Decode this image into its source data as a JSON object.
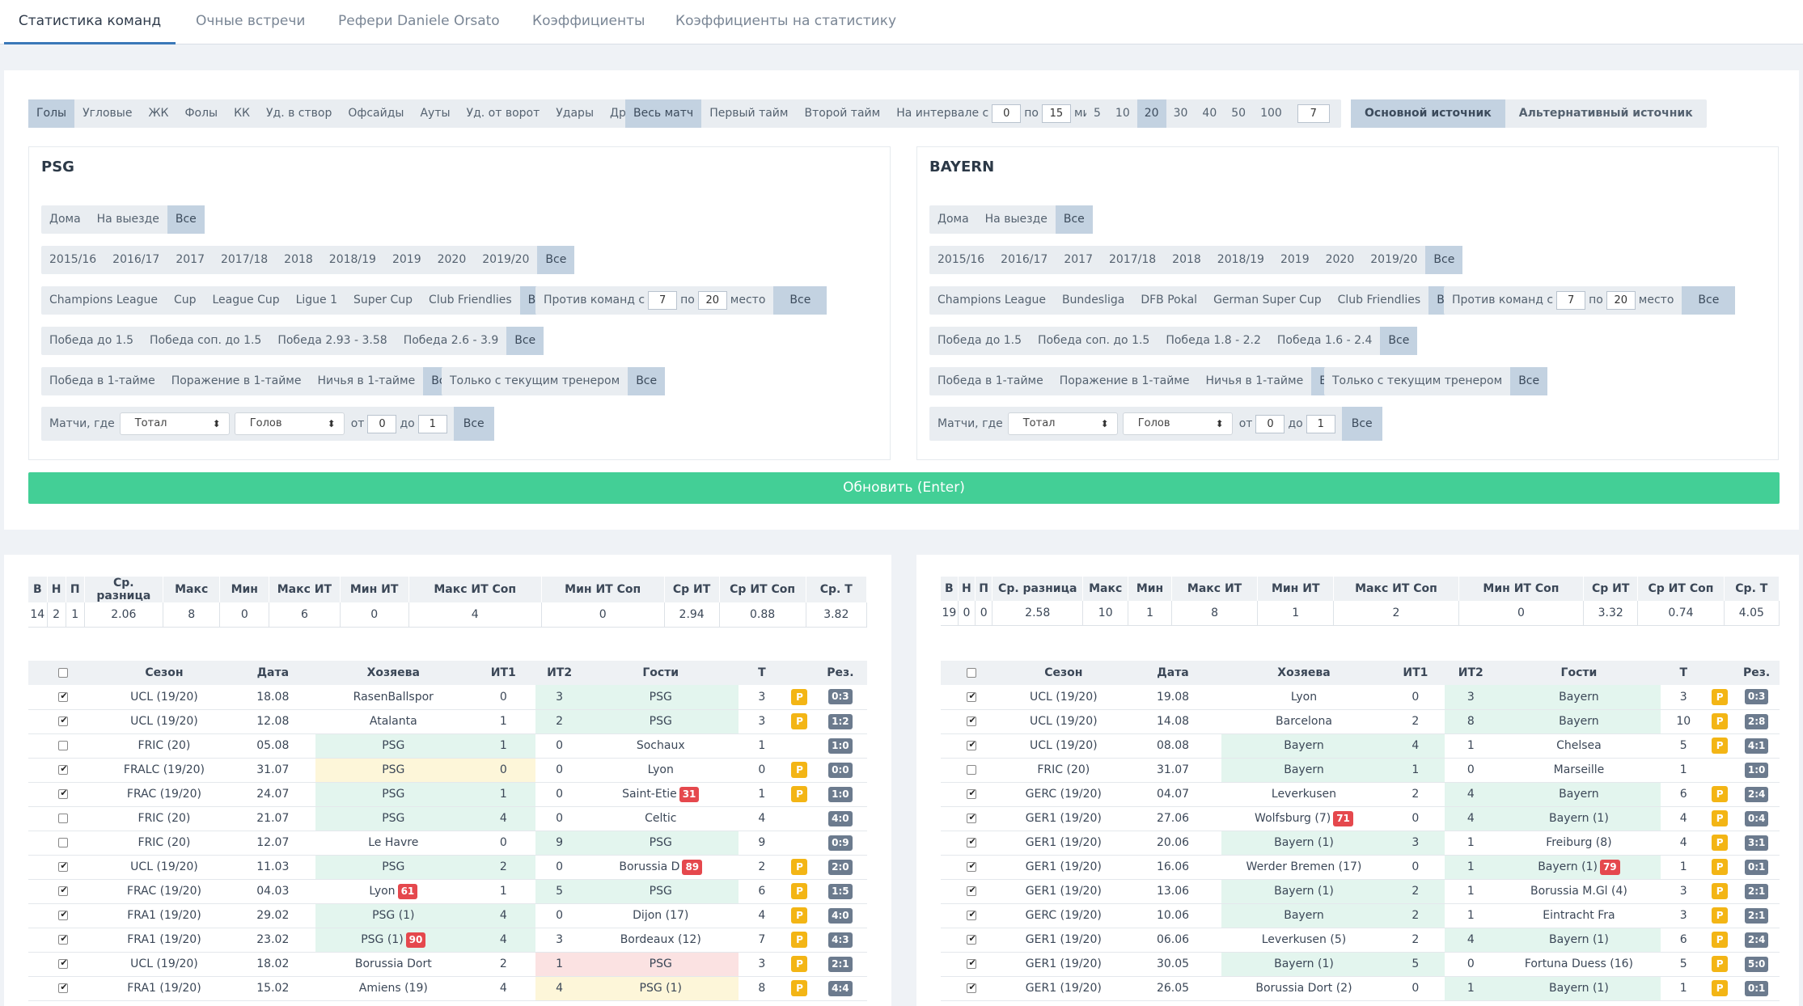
{
  "tabs": [
    "Статистика команд",
    "Очные встречи",
    "Рефери Daniele Orsato",
    "Коэффициенты",
    "Коэффициенты на статистику"
  ],
  "stat_types": [
    "Голы",
    "Угловые",
    "ЖК",
    "Фолы",
    "КК",
    "Уд. в створ",
    "Офсайды",
    "Ауты",
    "Уд. от ворот",
    "Удары",
    "Другое ▾"
  ],
  "periods": {
    "items": [
      "Весь матч",
      "Первый тайм",
      "Второй тайм"
    ],
    "interval_label": "На интервале с",
    "from": "0",
    "to_label": "по",
    "to": "15",
    "unit": "мин."
  },
  "counts": {
    "items": [
      "5",
      "10",
      "20",
      "30",
      "40",
      "50",
      "100"
    ],
    "custom": "7"
  },
  "sources": [
    "Основной источник",
    "Альтернативный источник"
  ],
  "teams": [
    {
      "name": "PSG",
      "venue": [
        "Дома",
        "На выезде",
        "Все"
      ],
      "seasons": [
        "2015/16",
        "2016/17",
        "2017",
        "2017/18",
        "2018",
        "2018/19",
        "2019",
        "2020",
        "2019/20",
        "Все"
      ],
      "comps": [
        "Champions League",
        "Cup",
        "League Cup",
        "Ligue 1",
        "Super Cup",
        "Club Friendlies",
        "Все"
      ],
      "against": {
        "label": "Против команд с",
        "from": "7",
        "to_label": "по",
        "to": "20",
        "unit": "место",
        "all": "Все"
      },
      "odds": [
        "Победа до 1.5",
        "Победа соп. до 1.5",
        "Победа 2.93 - 3.58",
        "Победа 2.6 - 3.9",
        "Все"
      ],
      "half": [
        "Победа в 1-тайме",
        "Поражение в 1-тайме",
        "Ничья в 1-тайме",
        "Все"
      ],
      "coach": [
        "Только с текущим тренером",
        "Все"
      ],
      "matches": {
        "label": "Матчи, где",
        "sel1": "Тотал",
        "sel2": "Голов",
        "from_label": "от",
        "from": "0",
        "to_label": "до",
        "to": "1",
        "all": "Все"
      }
    },
    {
      "name": "BAYERN",
      "venue": [
        "Дома",
        "На выезде",
        "Все"
      ],
      "seasons": [
        "2015/16",
        "2016/17",
        "2017",
        "2017/18",
        "2018",
        "2018/19",
        "2019",
        "2020",
        "2019/20",
        "Все"
      ],
      "comps": [
        "Champions League",
        "Bundesliga",
        "DFB Pokal",
        "German Super Cup",
        "Club Friendlies",
        "Все"
      ],
      "against": {
        "label": "Против команд с",
        "from": "7",
        "to_label": "по",
        "to": "20",
        "unit": "место",
        "all": "Все"
      },
      "odds": [
        "Победа до 1.5",
        "Победа соп. до 1.5",
        "Победа 1.8 - 2.2",
        "Победа 1.6 - 2.4",
        "Все"
      ],
      "half": [
        "Победа в 1-тайме",
        "Поражение в 1-тайме",
        "Ничья в 1-тайме",
        "Все"
      ],
      "coach": [
        "Только с текущим тренером",
        "Все"
      ],
      "matches": {
        "label": "Матчи, где",
        "sel1": "Тотал",
        "sel2": "Голов",
        "from_label": "от",
        "from": "0",
        "to_label": "до",
        "to": "1",
        "all": "Все"
      }
    }
  ],
  "update_button": "Обновить (Enter)",
  "stat_headers": [
    "В",
    "Н",
    "П",
    "Ср. разница",
    "Макс",
    "Мин",
    "Макс ИТ",
    "Мин ИТ",
    "Макс ИТ Соп",
    "Мин ИТ Соп",
    "Ср ИТ",
    "Ср ИТ Соп",
    "Ср. Т"
  ],
  "stats": [
    [
      "14",
      "2",
      "1",
      "2.06",
      "8",
      "0",
      "6",
      "0",
      "4",
      "0",
      "2.94",
      "0.88",
      "3.82"
    ],
    [
      "19",
      "0",
      "0",
      "2.58",
      "10",
      "1",
      "8",
      "1",
      "2",
      "0",
      "3.32",
      "0.74",
      "4.05"
    ]
  ],
  "match_headers": [
    "Сезон",
    "Дата",
    "Хозяева",
    "ИТ1",
    "ИТ2",
    "Гости",
    "Т",
    "",
    "Рез."
  ],
  "matches": [
    [
      {
        "c": 1,
        "s": "UCL (19/20)",
        "d": "18.08",
        "h": "RasenBallspor",
        "i1": "0",
        "i2": "3",
        "a": "PSG",
        "t": "3",
        "p": "P",
        "r": "0:3",
        "hc": "",
        "i1c": "",
        "i2c": "g",
        "ac": "g"
      },
      {
        "c": 1,
        "s": "UCL (19/20)",
        "d": "12.08",
        "h": "Atalanta",
        "i1": "1",
        "i2": "2",
        "a": "PSG",
        "t": "3",
        "p": "P",
        "r": "1:2",
        "hc": "",
        "i1c": "",
        "i2c": "g",
        "ac": "g"
      },
      {
        "c": 0,
        "s": "FRIC (20)",
        "d": "05.08",
        "h": "PSG",
        "i1": "1",
        "i2": "0",
        "a": "Sochaux",
        "t": "1",
        "p": "",
        "r": "1:0",
        "hc": "g",
        "i1c": "g",
        "i2c": "",
        "ac": ""
      },
      {
        "c": 1,
        "s": "FRALC (19/20)",
        "d": "31.07",
        "h": "PSG",
        "i1": "0",
        "i2": "0",
        "a": "Lyon",
        "t": "0",
        "p": "P",
        "r": "0:0",
        "hc": "y",
        "i1c": "y",
        "i2c": "",
        "ac": ""
      },
      {
        "c": 1,
        "s": "FRAC (19/20)",
        "d": "24.07",
        "h": "PSG",
        "i1": "1",
        "i2": "0",
        "a": "Saint-Etie",
        "am": "31",
        "t": "1",
        "p": "P",
        "r": "1:0",
        "hc": "g",
        "i1c": "g",
        "i2c": "",
        "ac": ""
      },
      {
        "c": 0,
        "s": "FRIC (20)",
        "d": "21.07",
        "h": "PSG",
        "i1": "4",
        "i2": "0",
        "a": "Celtic",
        "t": "4",
        "p": "",
        "r": "4:0",
        "hc": "g",
        "i1c": "g",
        "i2c": "",
        "ac": ""
      },
      {
        "c": 0,
        "s": "FRIC (20)",
        "d": "12.07",
        "h": "Le Havre",
        "i1": "0",
        "i2": "9",
        "a": "PSG",
        "t": "9",
        "p": "",
        "r": "0:9",
        "hc": "",
        "i1c": "",
        "i2c": "g",
        "ac": "g"
      },
      {
        "c": 1,
        "s": "UCL (19/20)",
        "d": "11.03",
        "h": "PSG",
        "i1": "2",
        "i2": "0",
        "a": "Borussia D",
        "am": "89",
        "t": "2",
        "p": "P",
        "r": "2:0",
        "hc": "g",
        "i1c": "g",
        "i2c": "",
        "ac": ""
      },
      {
        "c": 1,
        "s": "FRAC (19/20)",
        "d": "04.03",
        "h": "Lyon",
        "hm": "61",
        "i1": "1",
        "i2": "5",
        "a": "PSG",
        "t": "6",
        "p": "P",
        "r": "1:5",
        "hc": "",
        "i1c": "",
        "i2c": "g",
        "ac": "g"
      },
      {
        "c": 1,
        "s": "FRA1 (19/20)",
        "d": "29.02",
        "h": "PSG (1)",
        "i1": "4",
        "i2": "0",
        "a": "Dijon (17)",
        "t": "4",
        "p": "P",
        "r": "4:0",
        "hc": "g",
        "i1c": "g",
        "i2c": "",
        "ac": ""
      },
      {
        "c": 1,
        "s": "FRA1 (19/20)",
        "d": "23.02",
        "h": "PSG (1)",
        "hm": "90",
        "i1": "4",
        "i2": "3",
        "a": "Bordeaux (12)",
        "t": "7",
        "p": "P",
        "r": "4:3",
        "hc": "g",
        "i1c": "g",
        "i2c": "",
        "ac": ""
      },
      {
        "c": 1,
        "s": "UCL (19/20)",
        "d": "18.02",
        "h": "Borussia Dort",
        "i1": "2",
        "i2": "1",
        "a": "PSG",
        "t": "3",
        "p": "P",
        "r": "2:1",
        "hc": "",
        "i1c": "",
        "i2c": "r",
        "ac": "r"
      },
      {
        "c": 1,
        "s": "FRA1 (19/20)",
        "d": "15.02",
        "h": "Amiens (19)",
        "i1": "4",
        "i2": "4",
        "a": "PSG (1)",
        "t": "8",
        "p": "P",
        "r": "4:4",
        "hc": "",
        "i1c": "",
        "i2c": "y",
        "ac": "y"
      }
    ],
    [
      {
        "c": 1,
        "s": "UCL (19/20)",
        "d": "19.08",
        "h": "Lyon",
        "i1": "0",
        "i2": "3",
        "a": "Bayern",
        "t": "3",
        "p": "P",
        "r": "0:3",
        "hc": "",
        "i1c": "",
        "i2c": "g",
        "ac": "g"
      },
      {
        "c": 1,
        "s": "UCL (19/20)",
        "d": "14.08",
        "h": "Barcelona",
        "i1": "2",
        "i2": "8",
        "a": "Bayern",
        "t": "10",
        "p": "P",
        "r": "2:8",
        "hc": "",
        "i1c": "",
        "i2c": "g",
        "ac": "g"
      },
      {
        "c": 1,
        "s": "UCL (19/20)",
        "d": "08.08",
        "h": "Bayern",
        "i1": "4",
        "i2": "1",
        "a": "Chelsea",
        "t": "5",
        "p": "P",
        "r": "4:1",
        "hc": "g",
        "i1c": "g",
        "i2c": "",
        "ac": ""
      },
      {
        "c": 0,
        "s": "FRIC (20)",
        "d": "31.07",
        "h": "Bayern",
        "i1": "1",
        "i2": "0",
        "a": "Marseille",
        "t": "1",
        "p": "",
        "r": "1:0",
        "hc": "g",
        "i1c": "g",
        "i2c": "",
        "ac": ""
      },
      {
        "c": 1,
        "s": "GERC (19/20)",
        "d": "04.07",
        "h": "Leverkusen",
        "i1": "2",
        "i2": "4",
        "a": "Bayern",
        "t": "6",
        "p": "P",
        "r": "2:4",
        "hc": "",
        "i1c": "",
        "i2c": "g",
        "ac": "g"
      },
      {
        "c": 1,
        "s": "GER1 (19/20)",
        "d": "27.06",
        "h": "Wolfsburg (7)",
        "hm": "71",
        "i1": "0",
        "i2": "4",
        "a": "Bayern (1)",
        "t": "4",
        "p": "P",
        "r": "0:4",
        "hc": "",
        "i1c": "",
        "i2c": "g",
        "ac": "g"
      },
      {
        "c": 1,
        "s": "GER1 (19/20)",
        "d": "20.06",
        "h": "Bayern (1)",
        "i1": "3",
        "i2": "1",
        "a": "Freiburg (8)",
        "t": "4",
        "p": "P",
        "r": "3:1",
        "hc": "g",
        "i1c": "g",
        "i2c": "",
        "ac": ""
      },
      {
        "c": 1,
        "s": "GER1 (19/20)",
        "d": "16.06",
        "h": "Werder Bremen (17)",
        "i1": "0",
        "i2": "1",
        "a": "Bayern (1)",
        "am": "79",
        "t": "1",
        "p": "P",
        "r": "0:1",
        "hc": "",
        "i1c": "",
        "i2c": "g",
        "ac": "g"
      },
      {
        "c": 1,
        "s": "GER1 (19/20)",
        "d": "13.06",
        "h": "Bayern (1)",
        "i1": "2",
        "i2": "1",
        "a": "Borussia M.Gl (4)",
        "t": "3",
        "p": "P",
        "r": "2:1",
        "hc": "g",
        "i1c": "g",
        "i2c": "",
        "ac": ""
      },
      {
        "c": 1,
        "s": "GERC (19/20)",
        "d": "10.06",
        "h": "Bayern",
        "i1": "2",
        "i2": "1",
        "a": "Eintracht Fra",
        "t": "3",
        "p": "P",
        "r": "2:1",
        "hc": "g",
        "i1c": "g",
        "i2c": "",
        "ac": ""
      },
      {
        "c": 1,
        "s": "GER1 (19/20)",
        "d": "06.06",
        "h": "Leverkusen (5)",
        "i1": "2",
        "i2": "4",
        "a": "Bayern (1)",
        "t": "6",
        "p": "P",
        "r": "2:4",
        "hc": "",
        "i1c": "",
        "i2c": "g",
        "ac": "g"
      },
      {
        "c": 1,
        "s": "GER1 (19/20)",
        "d": "30.05",
        "h": "Bayern (1)",
        "i1": "5",
        "i2": "0",
        "a": "Fortuna Duess (16)",
        "t": "5",
        "p": "P",
        "r": "5:0",
        "hc": "g",
        "i1c": "g",
        "i2c": "",
        "ac": ""
      },
      {
        "c": 1,
        "s": "GER1 (19/20)",
        "d": "26.05",
        "h": "Borussia Dort (2)",
        "i1": "0",
        "i2": "1",
        "a": "Bayern (1)",
        "t": "1",
        "p": "P",
        "r": "0:1",
        "hc": "",
        "i1c": "",
        "i2c": "g",
        "ac": "g"
      }
    ]
  ],
  "colors": {
    "accent": "#43cf96",
    "selected": "#c3d2e1",
    "badge_p": "#f3b515",
    "badge_min": "#e5484d",
    "result": "#6c7b8e"
  }
}
